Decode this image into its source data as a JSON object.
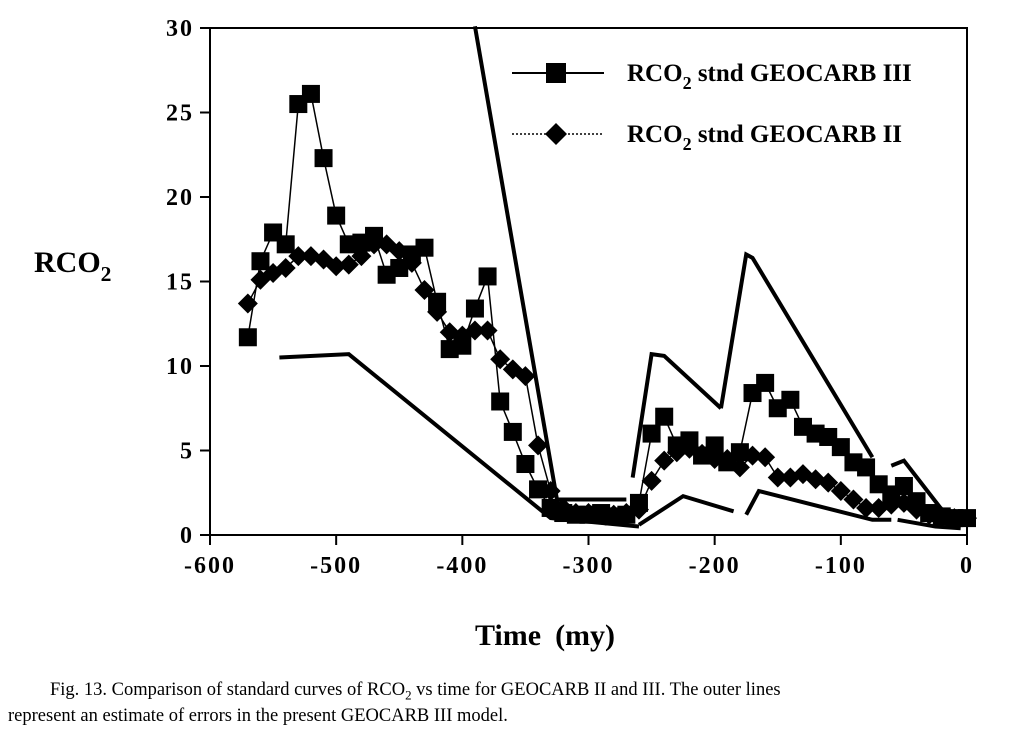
{
  "chart_data": {
    "type": "line",
    "xlabel": "Time",
    "xlabel_unit": "(my)",
    "ylabel_main": "RCO",
    "ylabel_sub": "2",
    "xlim": [
      -600,
      0
    ],
    "ylim": [
      0,
      30
    ],
    "x_ticks": [
      -600,
      -500,
      -400,
      -300,
      -200,
      -100,
      0
    ],
    "x_tick_labels": [
      "-600",
      "-500",
      "-400",
      "-300",
      "-200",
      "-100",
      "0"
    ],
    "y_ticks": [
      0,
      5,
      10,
      15,
      20,
      25,
      30
    ],
    "y_tick_labels": [
      "0",
      "5",
      "10",
      "15",
      "20",
      "25",
      "30"
    ],
    "grid": false,
    "legend_position": "top-right",
    "series": [
      {
        "name_main": "RCO",
        "name_sub": "2",
        "name_rest": " stnd GEOCARB III",
        "marker": "square",
        "x": [
          -570,
          -560,
          -550,
          -540,
          -530,
          -520,
          -510,
          -500,
          -490,
          -480,
          -470,
          -460,
          -450,
          -440,
          -430,
          -420,
          -410,
          -400,
          -390,
          -380,
          -370,
          -360,
          -350,
          -340,
          -330,
          -320,
          -310,
          -300,
          -290,
          -280,
          -270,
          -260,
          -250,
          -240,
          -230,
          -220,
          -210,
          -200,
          -190,
          -180,
          -170,
          -160,
          -150,
          -140,
          -130,
          -120,
          -110,
          -100,
          -90,
          -80,
          -70,
          -60,
          -50,
          -40,
          -30,
          -20,
          -10,
          0
        ],
        "y": [
          11.7,
          16.2,
          17.9,
          17.2,
          25.5,
          26.1,
          22.3,
          18.9,
          17.2,
          17.3,
          17.7,
          15.4,
          15.8,
          16.6,
          17.0,
          13.8,
          11.0,
          11.2,
          13.4,
          15.3,
          7.9,
          6.1,
          4.2,
          2.7,
          1.6,
          1.3,
          1.2,
          1.2,
          1.3,
          1.1,
          1.2,
          1.9,
          6.0,
          7.0,
          5.3,
          5.6,
          4.7,
          5.3,
          4.3,
          4.9,
          8.4,
          9.0,
          7.5,
          8.0,
          6.4,
          6.0,
          5.8,
          5.2,
          4.3,
          4.0,
          3.0,
          2.4,
          2.9,
          2.0,
          1.3,
          1.1,
          1.0,
          1.0
        ]
      },
      {
        "name_main": "RCO",
        "name_sub": "2",
        "name_rest": " stnd GEOCARB II",
        "marker": "diamond",
        "x": [
          -570,
          -560,
          -550,
          -540,
          -530,
          -520,
          -510,
          -500,
          -490,
          -480,
          -470,
          -460,
          -450,
          -440,
          -430,
          -420,
          -410,
          -400,
          -390,
          -380,
          -370,
          -360,
          -350,
          -340,
          -330,
          -320,
          -310,
          -300,
          -290,
          -280,
          -270,
          -260,
          -250,
          -240,
          -230,
          -220,
          -210,
          -200,
          -190,
          -180,
          -170,
          -160,
          -150,
          -140,
          -130,
          -120,
          -110,
          -100,
          -90,
          -80,
          -70,
          -60,
          -50,
          -40,
          -30,
          -20,
          -10,
          0
        ],
        "y": [
          13.7,
          15.1,
          15.5,
          15.8,
          16.5,
          16.5,
          16.3,
          15.9,
          16.0,
          16.5,
          17.2,
          17.2,
          16.8,
          16.1,
          14.5,
          13.2,
          12.0,
          11.8,
          12.1,
          12.1,
          10.4,
          9.8,
          9.4,
          5.3,
          2.6,
          1.6,
          1.3,
          1.3,
          1.2,
          1.2,
          1.3,
          1.5,
          3.2,
          4.4,
          4.9,
          5.1,
          4.8,
          4.5,
          4.5,
          4.0,
          4.7,
          4.6,
          3.4,
          3.4,
          3.6,
          3.3,
          3.1,
          2.6,
          2.1,
          1.6,
          1.6,
          1.8,
          1.9,
          1.5,
          1.2,
          1.1,
          1.0,
          1.0
        ]
      }
    ],
    "error_bounds": [
      {
        "x": [
          -390,
          -355,
          -325,
          -270
        ],
        "y": [
          30.1,
          15.0,
          2.1,
          2.1
        ]
      },
      {
        "x": [
          -265,
          -250,
          -240,
          -195
        ],
        "y": [
          3.4,
          10.7,
          10.6,
          7.5
        ]
      },
      {
        "x": [
          -195,
          -175,
          -170,
          -75
        ],
        "y": [
          7.5,
          16.6,
          16.4,
          4.6
        ]
      },
      {
        "x": [
          -60,
          -50,
          -20,
          -5
        ],
        "y": [
          4.1,
          4.4,
          1.5,
          1.3
        ]
      },
      {
        "x": [
          -545,
          -490,
          -330,
          -260
        ],
        "y": [
          10.5,
          10.7,
          1.0,
          0.5
        ]
      },
      {
        "x": [
          -260,
          -225,
          -185
        ],
        "y": [
          0.6,
          2.3,
          1.4
        ]
      },
      {
        "x": [
          -175,
          -165,
          -75,
          -60
        ],
        "y": [
          1.2,
          2.6,
          0.9,
          0.9
        ]
      },
      {
        "x": [
          -55,
          -25,
          -5
        ],
        "y": [
          0.9,
          0.5,
          0.4
        ]
      }
    ]
  },
  "caption": {
    "line1_part1": "Fig. 13. Comparison of standard curves of RCO",
    "line1_sub": "2",
    "line1_part2": " vs time for GEOCARB II and III. The outer lines",
    "line2": "represent an estimate of errors in the present GEOCARB III model."
  }
}
